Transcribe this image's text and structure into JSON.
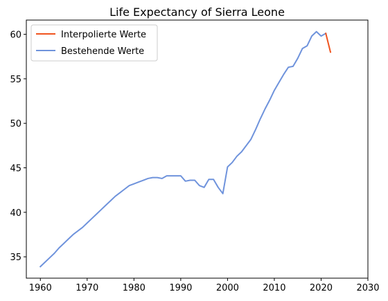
{
  "chart_data": {
    "type": "line",
    "title": "Life Expectancy of Sierra Leone",
    "xlabel": "",
    "ylabel": "",
    "xlim": [
      1957,
      2030
    ],
    "ylim": [
      32.6,
      61.6
    ],
    "xticks": [
      1960,
      1970,
      1980,
      1990,
      2000,
      2010,
      2020,
      2030
    ],
    "yticks": [
      35,
      40,
      45,
      50,
      55,
      60
    ],
    "grid": false,
    "legend_position": "top-left",
    "series": [
      {
        "name": "Interpolierte Werte",
        "color": "#f0541e",
        "x": [
          2021,
          2022
        ],
        "y": [
          60.1,
          58.0
        ]
      },
      {
        "name": "Bestehende Werte",
        "color": "#6f93dc",
        "x": [
          1960,
          1961,
          1962,
          1963,
          1964,
          1965,
          1966,
          1967,
          1968,
          1969,
          1970,
          1971,
          1972,
          1973,
          1974,
          1975,
          1976,
          1977,
          1978,
          1979,
          1980,
          1981,
          1982,
          1983,
          1984,
          1985,
          1986,
          1987,
          1988,
          1989,
          1990,
          1991,
          1992,
          1993,
          1994,
          1995,
          1996,
          1997,
          1998,
          1999,
          2000,
          2001,
          2002,
          2003,
          2004,
          2005,
          2006,
          2007,
          2008,
          2009,
          2010,
          2011,
          2012,
          2013,
          2014,
          2015,
          2016,
          2017,
          2018,
          2019,
          2020,
          2021
        ],
        "y": [
          33.9,
          34.4,
          34.9,
          35.4,
          36.0,
          36.5,
          37.0,
          37.5,
          37.9,
          38.3,
          38.8,
          39.3,
          39.8,
          40.3,
          40.8,
          41.3,
          41.8,
          42.2,
          42.6,
          43.0,
          43.2,
          43.4,
          43.6,
          43.8,
          43.9,
          43.9,
          43.8,
          44.1,
          44.1,
          44.1,
          44.1,
          43.5,
          43.6,
          43.6,
          43.0,
          42.8,
          43.7,
          43.7,
          42.8,
          42.1,
          45.1,
          45.6,
          46.3,
          46.8,
          47.5,
          48.2,
          49.3,
          50.5,
          51.6,
          52.6,
          53.7,
          54.6,
          55.5,
          56.3,
          56.4,
          57.3,
          58.4,
          58.7,
          59.8,
          60.3,
          59.8,
          60.1
        ]
      }
    ]
  }
}
